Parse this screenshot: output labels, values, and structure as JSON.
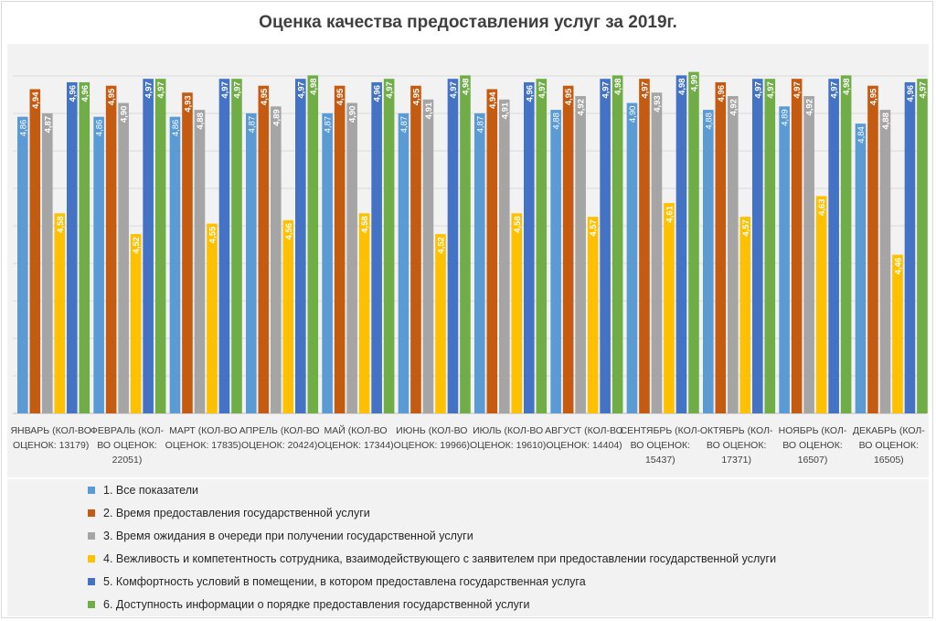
{
  "chart_data": {
    "type": "bar",
    "title": "Оценка качества предоставления услуг за 2019г.",
    "xlabel": "",
    "ylabel": "",
    "ylim": [
      4.0,
      5.05
    ],
    "grid": true,
    "legend_position": "bottom",
    "categories": [
      [
        "ЯНВАРЬ (КОЛ-ВО",
        "ОЦЕНОК: 13179)"
      ],
      [
        "ФЕВРАЛЬ (КОЛ-",
        "ВО ОЦЕНОК:",
        "22051)"
      ],
      [
        "МАРТ (КОЛ-ВО",
        "ОЦЕНОК: 17835)"
      ],
      [
        "АПРЕЛЬ (КОЛ-ВО",
        "ОЦЕНОК: 20424)"
      ],
      [
        "МАЙ (КОЛ-ВО",
        "ОЦЕНОК: 17344)"
      ],
      [
        "ИЮНЬ (КОЛ-ВО",
        "ОЦЕНОК: 19966)"
      ],
      [
        "ИЮЛЬ (КОЛ-ВО",
        "ОЦЕНОК: 19610)"
      ],
      [
        "АВГУСТ (КОЛ-ВО",
        "ОЦЕНОК: 14404)"
      ],
      [
        "СЕНТЯБРЬ (КОЛ-",
        "ВО ОЦЕНОК:",
        "15437)"
      ],
      [
        "ОКТЯБРЬ (КОЛ-",
        "ВО ОЦЕНОК:",
        "17371)"
      ],
      [
        "НОЯБРЬ (КОЛ-",
        "ВО ОЦЕНОК:",
        "16507)"
      ],
      [
        "ДЕКАБРЬ (КОЛ-",
        "ВО ОЦЕНОК:",
        "16505)"
      ]
    ],
    "series": [
      {
        "name": "1. Все показатели",
        "color": "#5b9bd5",
        "values": [
          4.86,
          4.86,
          4.86,
          4.87,
          4.87,
          4.87,
          4.87,
          4.88,
          4.9,
          4.88,
          4.89,
          4.84
        ],
        "labels": [
          "4,86",
          "4,86",
          "4,86",
          "4,87",
          "4,87",
          "4,87",
          "4,87",
          "4,88",
          "4,90",
          "4,88",
          "4,89",
          "4,84"
        ]
      },
      {
        "name": "2. Время предоставления государственной услуги",
        "color": "#c55a11",
        "values": [
          4.94,
          4.95,
          4.93,
          4.95,
          4.95,
          4.95,
          4.94,
          4.95,
          4.97,
          4.96,
          4.97,
          4.95
        ],
        "labels": [
          "4,94",
          "4,95",
          "4,93",
          "4,95",
          "4,95",
          "4,95",
          "4,94",
          "4,95",
          "4,97",
          "4,96",
          "4,97",
          "4,95"
        ]
      },
      {
        "name": "3. Время ожидания в очереди при получении государственной услуги",
        "color": "#a5a5a5",
        "values": [
          4.87,
          4.9,
          4.88,
          4.89,
          4.9,
          4.91,
          4.91,
          4.92,
          4.93,
          4.92,
          4.92,
          4.88
        ],
        "labels": [
          "4,87",
          "4,90",
          "4,88",
          "4,89",
          "4,90",
          "4,91",
          "4,91",
          "4,92",
          "4,93",
          "4,92",
          "4,92",
          "4,88"
        ]
      },
      {
        "name": "4. Вежливость и компетентность сотрудника, взаимодействующего с заявителем при предоставлении государственной услуги",
        "color": "#ffc000",
        "values": [
          4.58,
          4.52,
          4.55,
          4.56,
          4.58,
          4.52,
          4.58,
          4.57,
          4.61,
          4.57,
          4.63,
          4.46
        ],
        "labels": [
          "4,58",
          "4,52",
          "4,55",
          "4,56",
          "4,58",
          "4,52",
          "4,58",
          "4,57",
          "4,61",
          "4,57",
          "4,63",
          "4,46"
        ]
      },
      {
        "name": "5. Комфортность условий в помещении, в котором  предоставлена государственная услуга",
        "color": "#4472c4",
        "values": [
          4.96,
          4.97,
          4.97,
          4.97,
          4.96,
          4.97,
          4.96,
          4.97,
          4.98,
          4.97,
          4.97,
          4.96
        ],
        "labels": [
          "4,96",
          "4,97",
          "4,97",
          "4,97",
          "4,96",
          "4,97",
          "4,96",
          "4,97",
          "4,98",
          "4,97",
          "4,97",
          "4,96"
        ]
      },
      {
        "name": "6. Доступность информации о порядке  предоставления государственной услуги",
        "color": "#70ad47",
        "values": [
          4.96,
          4.97,
          4.97,
          4.98,
          4.97,
          4.98,
          4.97,
          4.98,
          4.99,
          4.97,
          4.98,
          4.97
        ],
        "labels": [
          "4,96",
          "4,97",
          "4,97",
          "4,98",
          "4,97",
          "4,98",
          "4,97",
          "4,98",
          "4,99",
          "4,97",
          "4,98",
          "4,97"
        ]
      }
    ]
  }
}
